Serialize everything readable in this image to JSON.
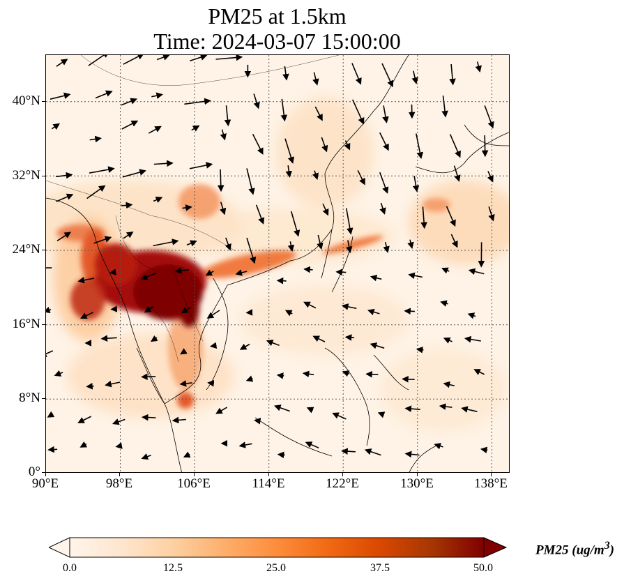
{
  "title_line1": "PM25 at 1.5km",
  "title_line2": "Time: 2024-03-07 15:00:00",
  "lat_ticks": [
    "40°N",
    "32°N",
    "24°N",
    "16°N",
    "8°N",
    "0°"
  ],
  "lon_ticks": [
    "90°E",
    "98°E",
    "106°E",
    "114°E",
    "122°E",
    "130°E",
    "138°E"
  ],
  "colorbar": {
    "title": "PM25 (ug/m",
    "title_sup": "3",
    "title_close": ")",
    "ticks": [
      "0.0",
      "12.5",
      "25.0",
      "37.5",
      "50.0"
    ],
    "min": 0,
    "max": 50,
    "colormap": [
      "#fff5eb",
      "#fee6ce",
      "#fdd0a2",
      "#fdae6b",
      "#fd8d3c",
      "#f16913",
      "#d94801",
      "#a63603",
      "#7f0000"
    ]
  },
  "map": {
    "lon_range": [
      90,
      140
    ],
    "lat_range": [
      0,
      45
    ],
    "background_color": "#fef3e6",
    "coastline_color": "#000000",
    "wind_arrow_color": "#000000",
    "gridline_style": "dotted"
  }
}
